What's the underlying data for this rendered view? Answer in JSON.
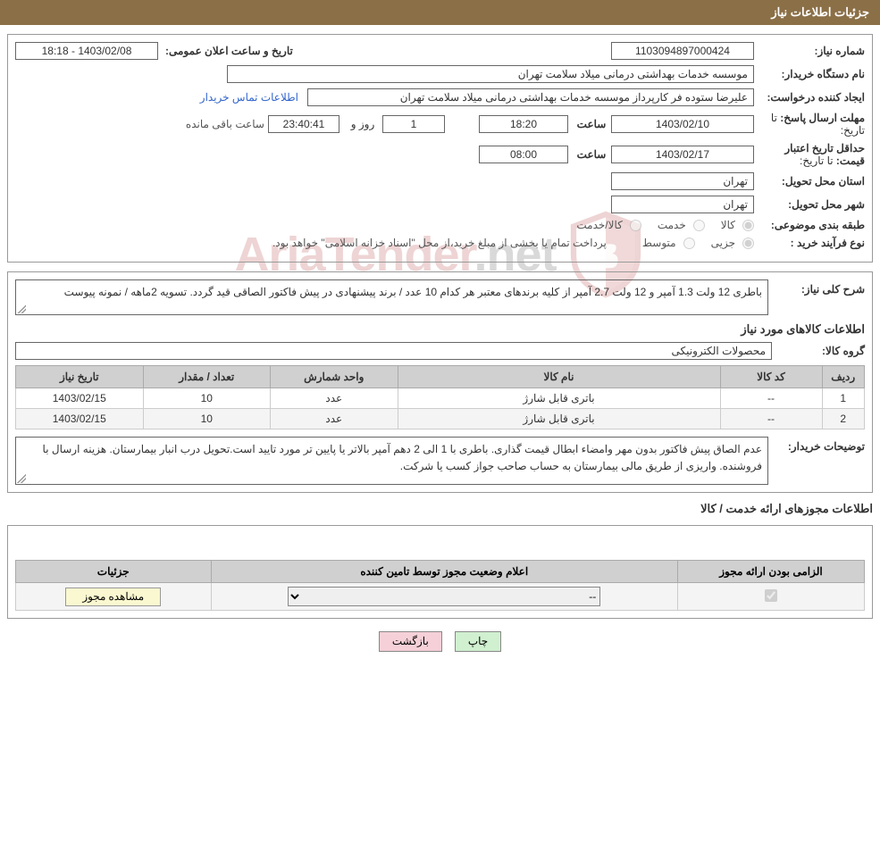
{
  "colors": {
    "header_bg": "#8b6f47",
    "header_fg": "#ffffff",
    "border": "#999999",
    "th_bg": "#d0d0d0",
    "link": "#3366cc"
  },
  "header": {
    "title": "جزئیات اطلاعات نیاز"
  },
  "fields": {
    "need_number_label": "شماره نیاز:",
    "need_number": "1103094897000424",
    "announce_label": "تاریخ و ساعت اعلان عمومی:",
    "announce_value": "1403/02/08 - 18:18",
    "buyer_org_label": "نام دستگاه خریدار:",
    "buyer_org": "موسسه خدمات بهداشتی درمانی میلاد سلامت تهران",
    "creator_label": "ایجاد کننده درخواست:",
    "creator": "علیرضا ستوده فر کارپرداز موسسه خدمات بهداشتی درمانی میلاد سلامت تهران",
    "contact_link": "اطلاعات تماس خریدار",
    "deadline_send_label": "مهلت ارسال پاسخ:",
    "until_date_label": "تا تاریخ:",
    "deadline_date": "1403/02/10",
    "time_label": "ساعت",
    "deadline_time": "18:20",
    "day_label": "روز و",
    "days_remaining": "1",
    "countdown": "23:40:41",
    "remaining_label": "ساعت باقی مانده",
    "price_valid_label": "حداقل تاریخ اعتبار قیمت:",
    "price_valid_date": "1403/02/17",
    "price_valid_time": "08:00",
    "delivery_province_label": "استان محل تحویل:",
    "delivery_province": "تهران",
    "delivery_city_label": "شهر محل تحویل:",
    "delivery_city": "تهران",
    "classification_label": "طبقه بندی موضوعی:",
    "class_goods": "کالا",
    "class_service": "خدمت",
    "class_goods_service": "کالا/خدمت",
    "purchase_type_label": "نوع فرآیند خرید :",
    "purchase_minor": "جزیی",
    "purchase_medium": "متوسط",
    "purchase_note": "پرداخت تمام یا بخشی از مبلغ خرید،از محل \"اسناد خزانه اسلامی\" خواهد بود."
  },
  "need_detail": {
    "desc_label": "شرح کلی نیاز:",
    "desc": "باطری 12 ولت 1.3 آمپر و 12 ولت 2.7 آمپر از کلیه برندهای معتبر هر کدام 10 عدد / برند پیشنهادی در پیش فاکتور الصاقی قید گردد. تسویه 2ماهه / نمونه پیوست",
    "items_title": "اطلاعات کالاهای مورد نیاز",
    "group_label": "گروه کالا:",
    "group_value": "محصولات الکترونیکی",
    "table": {
      "headers": [
        "ردیف",
        "کد کالا",
        "نام کالا",
        "واحد شمارش",
        "تعداد / مقدار",
        "تاریخ نیاز"
      ],
      "col_widths": [
        "5%",
        "12%",
        "38%",
        "15%",
        "15%",
        "15%"
      ],
      "rows": [
        [
          "1",
          "--",
          "باتری قابل شارژ",
          "عدد",
          "10",
          "1403/02/15"
        ],
        [
          "2",
          "--",
          "باتری قابل شارژ",
          "عدد",
          "10",
          "1403/02/15"
        ]
      ]
    },
    "buyer_notes_label": "توضیحات خریدار:",
    "buyer_notes": "عدم الصاق پیش فاکتور بدون مهر وامضاء ابطال  قیمت گذاری. باطری با 1 الی 2 دهم آمپر بالاتر یا پایین تر مورد تایید است.تحویل درب انبار بیمارستان. هزینه ارسال با فروشنده. واریزی  از طریق مالی بیمارستان به حساب صاحب جواز کسب یا شرکت."
  },
  "permits": {
    "title": "اطلاعات مجوزهای ارائه خدمت / کالا",
    "headers": [
      "الزامی بودن ارائه مجوز",
      "اعلام وضعیت مجوز توسط تامین کننده",
      "جزئیات"
    ],
    "select_placeholder": "--",
    "view_btn": "مشاهده مجوز"
  },
  "footer": {
    "print": "چاپ",
    "back": "بازگشت"
  },
  "watermark": {
    "text1": "AriaTender",
    "text2": ".net"
  }
}
